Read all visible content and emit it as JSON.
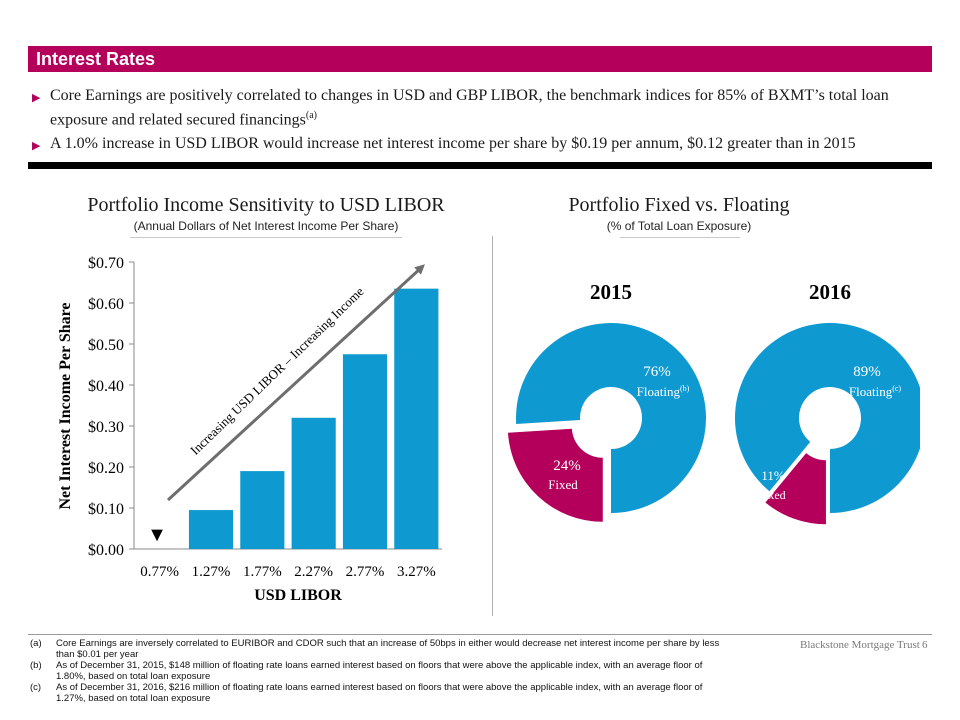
{
  "header": {
    "title": "Interest Rates"
  },
  "bullets": [
    {
      "text": "Core Earnings are positively correlated to changes in USD and GBP LIBOR, the benchmark indices for 85% of BXMT’s total loan exposure and related secured financings",
      "sup": "(a)"
    },
    {
      "text": "A 1.0% increase in USD LIBOR would increase net interest income per share by $0.19 per annum, $0.12 greater than in 2015",
      "sup": ""
    }
  ],
  "bullet_marker": "▶",
  "colors": {
    "accent": "#b5005b",
    "bar": "#0e9ad0",
    "fixed": "#b5005b",
    "arrow": "#6e6e6e"
  },
  "left_panel": {
    "title": "Portfolio Income Sensitivity to USD LIBOR",
    "subtitle": "(Annual Dollars of Net Interest Income Per Share)",
    "arrow_label": "Increasing USD LIBOR – Increasing Income",
    "marker": "▼"
  },
  "right_panel": {
    "title": "Portfolio Fixed vs. Floating",
    "subtitle": "(% of Total Loan Exposure)"
  },
  "chart_data": [
    {
      "type": "bar",
      "title": "Portfolio Income Sensitivity to USD LIBOR",
      "xlabel": "USD LIBOR",
      "ylabel": "Net Interest Income Per Share",
      "categories": [
        "0.77%",
        "1.27%",
        "1.77%",
        "2.27%",
        "2.77%",
        "3.27%"
      ],
      "values": [
        0.0,
        0.095,
        0.19,
        0.32,
        0.475,
        0.635
      ],
      "yticks": [
        "$0.00",
        "$0.10",
        "$0.20",
        "$0.30",
        "$0.40",
        "$0.50",
        "$0.60",
        "$0.70"
      ],
      "ylim": [
        0,
        0.7
      ]
    },
    {
      "type": "pie",
      "title": "2015",
      "slices": [
        {
          "label": "Floating",
          "sup": "(b)",
          "pct_label": "76%",
          "value": 76
        },
        {
          "label": "Fixed",
          "sup": "",
          "pct_label": "24%",
          "value": 24
        }
      ]
    },
    {
      "type": "pie",
      "title": "2016",
      "slices": [
        {
          "label": "Floating",
          "sup": "(c)",
          "pct_label": "89%",
          "value": 89
        },
        {
          "label": "Fixed",
          "sup": "",
          "pct_label": "11%",
          "value": 11
        }
      ]
    }
  ],
  "footnotes": [
    {
      "letter": "(a)",
      "text": "Core Earnings are inversely correlated to EURIBOR and CDOR such that an increase of 50bps in either would decrease net interest income per share by less than $0.01 per year"
    },
    {
      "letter": "(b)",
      "text": "As of December 31, 2015, $148 million of floating rate loans earned interest based on floors that were above the applicable index, with an average floor of 1.80%, based on total loan exposure"
    },
    {
      "letter": "(c)",
      "text": "As of December 31, 2016, $216 million of floating rate loans earned interest based on floors that were above the applicable index, with an average floor of 1.27%, based on total loan exposure"
    }
  ],
  "footer": {
    "brand": "Blackstone Mortgage Trust",
    "page": "6"
  }
}
